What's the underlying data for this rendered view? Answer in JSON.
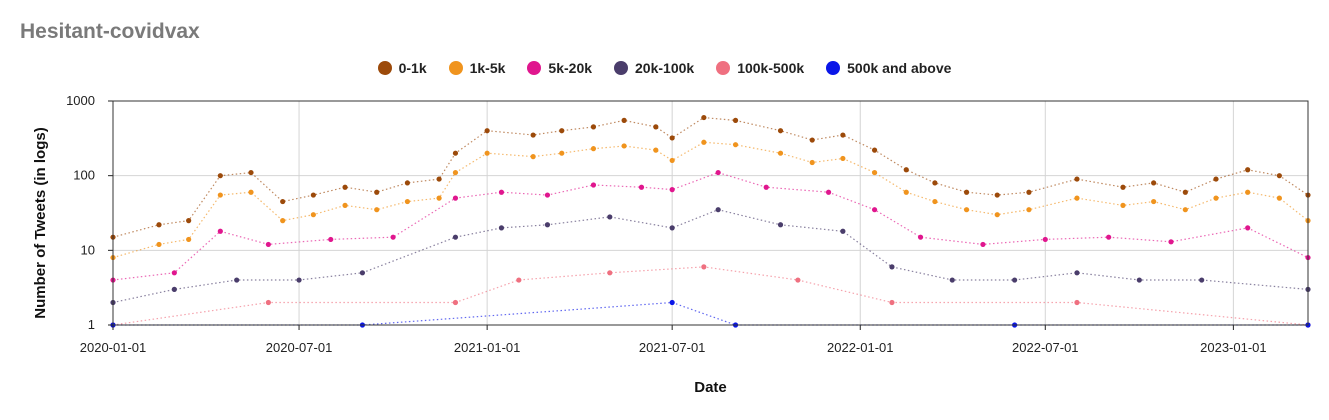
{
  "chart_data": {
    "type": "scatter",
    "title": "Hesitant-covidvax",
    "xlabel": "Date",
    "ylabel": "Number of Tweets (in logs)",
    "y_scale": "log",
    "ylim": [
      1,
      1000
    ],
    "y_ticks": [
      {
        "value": 1,
        "label": "1"
      },
      {
        "value": 10,
        "label": "10"
      },
      {
        "value": 100,
        "label": "100"
      },
      {
        "value": 1000,
        "label": "1000"
      }
    ],
    "x_range": [
      "2020-01-01",
      "2023-03-15"
    ],
    "x_ticks": [
      {
        "value": "2020-01-01",
        "label": "2020-01-01"
      },
      {
        "value": "2020-07-01",
        "label": "2020-07-01"
      },
      {
        "value": "2021-01-01",
        "label": "2021-01-01"
      },
      {
        "value": "2021-07-01",
        "label": "2021-07-01"
      },
      {
        "value": "2022-01-01",
        "label": "2022-01-01"
      },
      {
        "value": "2022-07-01",
        "label": "2022-07-01"
      },
      {
        "value": "2023-01-01",
        "label": "2023-01-01"
      }
    ],
    "grid": true,
    "legend_position": "top-center",
    "series": [
      {
        "name": "0-1k",
        "color": "#9c4a0a",
        "values": [
          {
            "x": "2020-01-01",
            "y": 15
          },
          {
            "x": "2020-02-15",
            "y": 22
          },
          {
            "x": "2020-03-15",
            "y": 25
          },
          {
            "x": "2020-04-15",
            "y": 100
          },
          {
            "x": "2020-05-15",
            "y": 110
          },
          {
            "x": "2020-06-15",
            "y": 45
          },
          {
            "x": "2020-07-15",
            "y": 55
          },
          {
            "x": "2020-08-15",
            "y": 70
          },
          {
            "x": "2020-09-15",
            "y": 60
          },
          {
            "x": "2020-10-15",
            "y": 80
          },
          {
            "x": "2020-11-15",
            "y": 90
          },
          {
            "x": "2020-12-01",
            "y": 200
          },
          {
            "x": "2021-01-01",
            "y": 400
          },
          {
            "x": "2021-02-15",
            "y": 350
          },
          {
            "x": "2021-03-15",
            "y": 400
          },
          {
            "x": "2021-04-15",
            "y": 450
          },
          {
            "x": "2021-05-15",
            "y": 550
          },
          {
            "x": "2021-06-15",
            "y": 450
          },
          {
            "x": "2021-07-01",
            "y": 320
          },
          {
            "x": "2021-08-01",
            "y": 600
          },
          {
            "x": "2021-09-01",
            "y": 550
          },
          {
            "x": "2021-10-15",
            "y": 400
          },
          {
            "x": "2021-11-15",
            "y": 300
          },
          {
            "x": "2021-12-15",
            "y": 350
          },
          {
            "x": "2022-01-15",
            "y": 220
          },
          {
            "x": "2022-02-15",
            "y": 120
          },
          {
            "x": "2022-03-15",
            "y": 80
          },
          {
            "x": "2022-04-15",
            "y": 60
          },
          {
            "x": "2022-05-15",
            "y": 55
          },
          {
            "x": "2022-06-15",
            "y": 60
          },
          {
            "x": "2022-08-01",
            "y": 90
          },
          {
            "x": "2022-09-15",
            "y": 70
          },
          {
            "x": "2022-10-15",
            "y": 80
          },
          {
            "x": "2022-11-15",
            "y": 60
          },
          {
            "x": "2022-12-15",
            "y": 90
          },
          {
            "x": "2023-01-15",
            "y": 120
          },
          {
            "x": "2023-02-15",
            "y": 100
          },
          {
            "x": "2023-03-15",
            "y": 55
          }
        ]
      },
      {
        "name": "1k-5k",
        "color": "#f0941e",
        "values": [
          {
            "x": "2020-01-01",
            "y": 8
          },
          {
            "x": "2020-02-15",
            "y": 12
          },
          {
            "x": "2020-03-15",
            "y": 14
          },
          {
            "x": "2020-04-15",
            "y": 55
          },
          {
            "x": "2020-05-15",
            "y": 60
          },
          {
            "x": "2020-06-15",
            "y": 25
          },
          {
            "x": "2020-07-15",
            "y": 30
          },
          {
            "x": "2020-08-15",
            "y": 40
          },
          {
            "x": "2020-09-15",
            "y": 35
          },
          {
            "x": "2020-10-15",
            "y": 45
          },
          {
            "x": "2020-11-15",
            "y": 50
          },
          {
            "x": "2020-12-01",
            "y": 110
          },
          {
            "x": "2021-01-01",
            "y": 200
          },
          {
            "x": "2021-02-15",
            "y": 180
          },
          {
            "x": "2021-03-15",
            "y": 200
          },
          {
            "x": "2021-04-15",
            "y": 230
          },
          {
            "x": "2021-05-15",
            "y": 250
          },
          {
            "x": "2021-06-15",
            "y": 220
          },
          {
            "x": "2021-07-01",
            "y": 160
          },
          {
            "x": "2021-08-01",
            "y": 280
          },
          {
            "x": "2021-09-01",
            "y": 260
          },
          {
            "x": "2021-10-15",
            "y": 200
          },
          {
            "x": "2021-11-15",
            "y": 150
          },
          {
            "x": "2021-12-15",
            "y": 170
          },
          {
            "x": "2022-01-15",
            "y": 110
          },
          {
            "x": "2022-02-15",
            "y": 60
          },
          {
            "x": "2022-03-15",
            "y": 45
          },
          {
            "x": "2022-04-15",
            "y": 35
          },
          {
            "x": "2022-05-15",
            "y": 30
          },
          {
            "x": "2022-06-15",
            "y": 35
          },
          {
            "x": "2022-08-01",
            "y": 50
          },
          {
            "x": "2022-09-15",
            "y": 40
          },
          {
            "x": "2022-10-15",
            "y": 45
          },
          {
            "x": "2022-11-15",
            "y": 35
          },
          {
            "x": "2022-12-15",
            "y": 50
          },
          {
            "x": "2023-01-15",
            "y": 60
          },
          {
            "x": "2023-02-15",
            "y": 50
          },
          {
            "x": "2023-03-15",
            "y": 25
          }
        ]
      },
      {
        "name": "5k-20k",
        "color": "#e0168e",
        "values": [
          {
            "x": "2020-01-01",
            "y": 4
          },
          {
            "x": "2020-03-01",
            "y": 5
          },
          {
            "x": "2020-04-15",
            "y": 18
          },
          {
            "x": "2020-06-01",
            "y": 12
          },
          {
            "x": "2020-08-01",
            "y": 14
          },
          {
            "x": "2020-10-01",
            "y": 15
          },
          {
            "x": "2020-12-01",
            "y": 50
          },
          {
            "x": "2021-01-15",
            "y": 60
          },
          {
            "x": "2021-03-01",
            "y": 55
          },
          {
            "x": "2021-04-15",
            "y": 75
          },
          {
            "x": "2021-06-01",
            "y": 70
          },
          {
            "x": "2021-07-01",
            "y": 65
          },
          {
            "x": "2021-08-15",
            "y": 110
          },
          {
            "x": "2021-10-01",
            "y": 70
          },
          {
            "x": "2021-12-01",
            "y": 60
          },
          {
            "x": "2022-01-15",
            "y": 35
          },
          {
            "x": "2022-03-01",
            "y": 15
          },
          {
            "x": "2022-05-01",
            "y": 12
          },
          {
            "x": "2022-07-01",
            "y": 14
          },
          {
            "x": "2022-09-01",
            "y": 15
          },
          {
            "x": "2022-11-01",
            "y": 13
          },
          {
            "x": "2023-01-15",
            "y": 20
          },
          {
            "x": "2023-03-15",
            "y": 8
          }
        ]
      },
      {
        "name": "20k-100k",
        "color": "#4a3d6b",
        "values": [
          {
            "x": "2020-01-01",
            "y": 2
          },
          {
            "x": "2020-03-01",
            "y": 3
          },
          {
            "x": "2020-05-01",
            "y": 4
          },
          {
            "x": "2020-07-01",
            "y": 4
          },
          {
            "x": "2020-09-01",
            "y": 5
          },
          {
            "x": "2020-12-01",
            "y": 15
          },
          {
            "x": "2021-01-15",
            "y": 20
          },
          {
            "x": "2021-03-01",
            "y": 22
          },
          {
            "x": "2021-05-01",
            "y": 28
          },
          {
            "x": "2021-07-01",
            "y": 20
          },
          {
            "x": "2021-08-15",
            "y": 35
          },
          {
            "x": "2021-10-15",
            "y": 22
          },
          {
            "x": "2021-12-15",
            "y": 18
          },
          {
            "x": "2022-02-01",
            "y": 6
          },
          {
            "x": "2022-04-01",
            "y": 4
          },
          {
            "x": "2022-06-01",
            "y": 4
          },
          {
            "x": "2022-08-01",
            "y": 5
          },
          {
            "x": "2022-10-01",
            "y": 4
          },
          {
            "x": "2022-12-01",
            "y": 4
          },
          {
            "x": "2023-03-15",
            "y": 3
          }
        ]
      },
      {
        "name": "100k-500k",
        "color": "#ef7080",
        "values": [
          {
            "x": "2020-01-01",
            "y": 1
          },
          {
            "x": "2020-06-01",
            "y": 2
          },
          {
            "x": "2020-12-01",
            "y": 2
          },
          {
            "x": "2021-02-01",
            "y": 4
          },
          {
            "x": "2021-05-01",
            "y": 5
          },
          {
            "x": "2021-08-01",
            "y": 6
          },
          {
            "x": "2021-11-01",
            "y": 4
          },
          {
            "x": "2022-02-01",
            "y": 2
          },
          {
            "x": "2022-08-01",
            "y": 2
          },
          {
            "x": "2023-03-15",
            "y": 1
          }
        ]
      },
      {
        "name": "500k and above",
        "color": "#0a16e8",
        "values": [
          {
            "x": "2020-01-01",
            "y": 1
          },
          {
            "x": "2020-09-01",
            "y": 1
          },
          {
            "x": "2021-07-01",
            "y": 2
          },
          {
            "x": "2021-09-01",
            "y": 1
          },
          {
            "x": "2022-06-01",
            "y": 1
          },
          {
            "x": "2023-03-15",
            "y": 1
          }
        ]
      }
    ]
  }
}
